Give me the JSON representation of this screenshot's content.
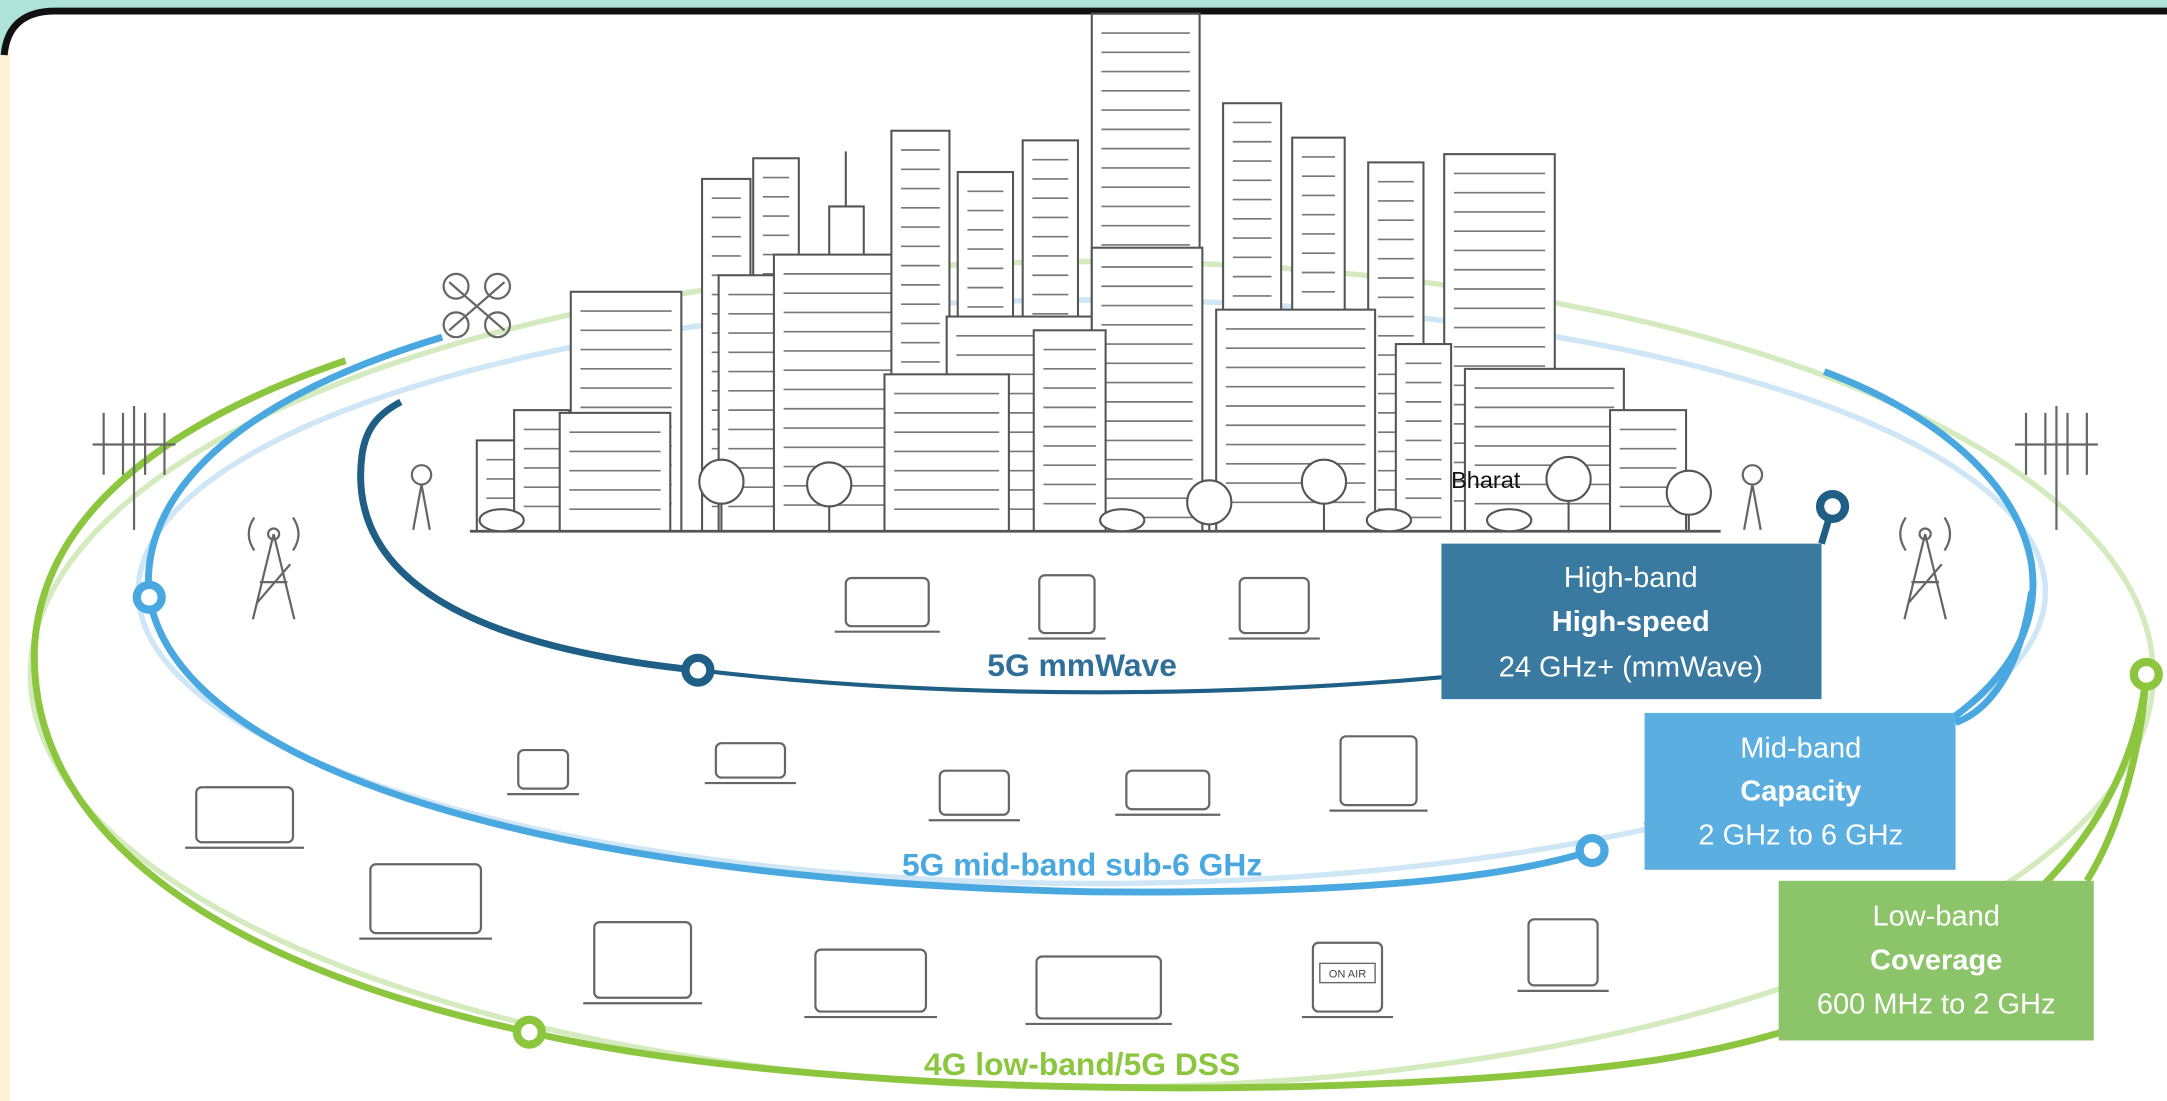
{
  "watermark": "Bharat",
  "bands": [
    {
      "name": "High-band",
      "feature": "High-speed",
      "range": "24 GHz+ (mmWave)",
      "ring_label": "5G mmWave"
    },
    {
      "name": "Mid-band",
      "feature": "Capacity",
      "range": "2 GHz to 6 GHz",
      "ring_label": "5G mid-band sub-6 GHz"
    },
    {
      "name": "Low-band",
      "feature": "Coverage",
      "range": "600 MHz to 2 GHz",
      "ring_label": "4G low-band/5G DSS"
    }
  ],
  "icon_text": "ON AIR"
}
